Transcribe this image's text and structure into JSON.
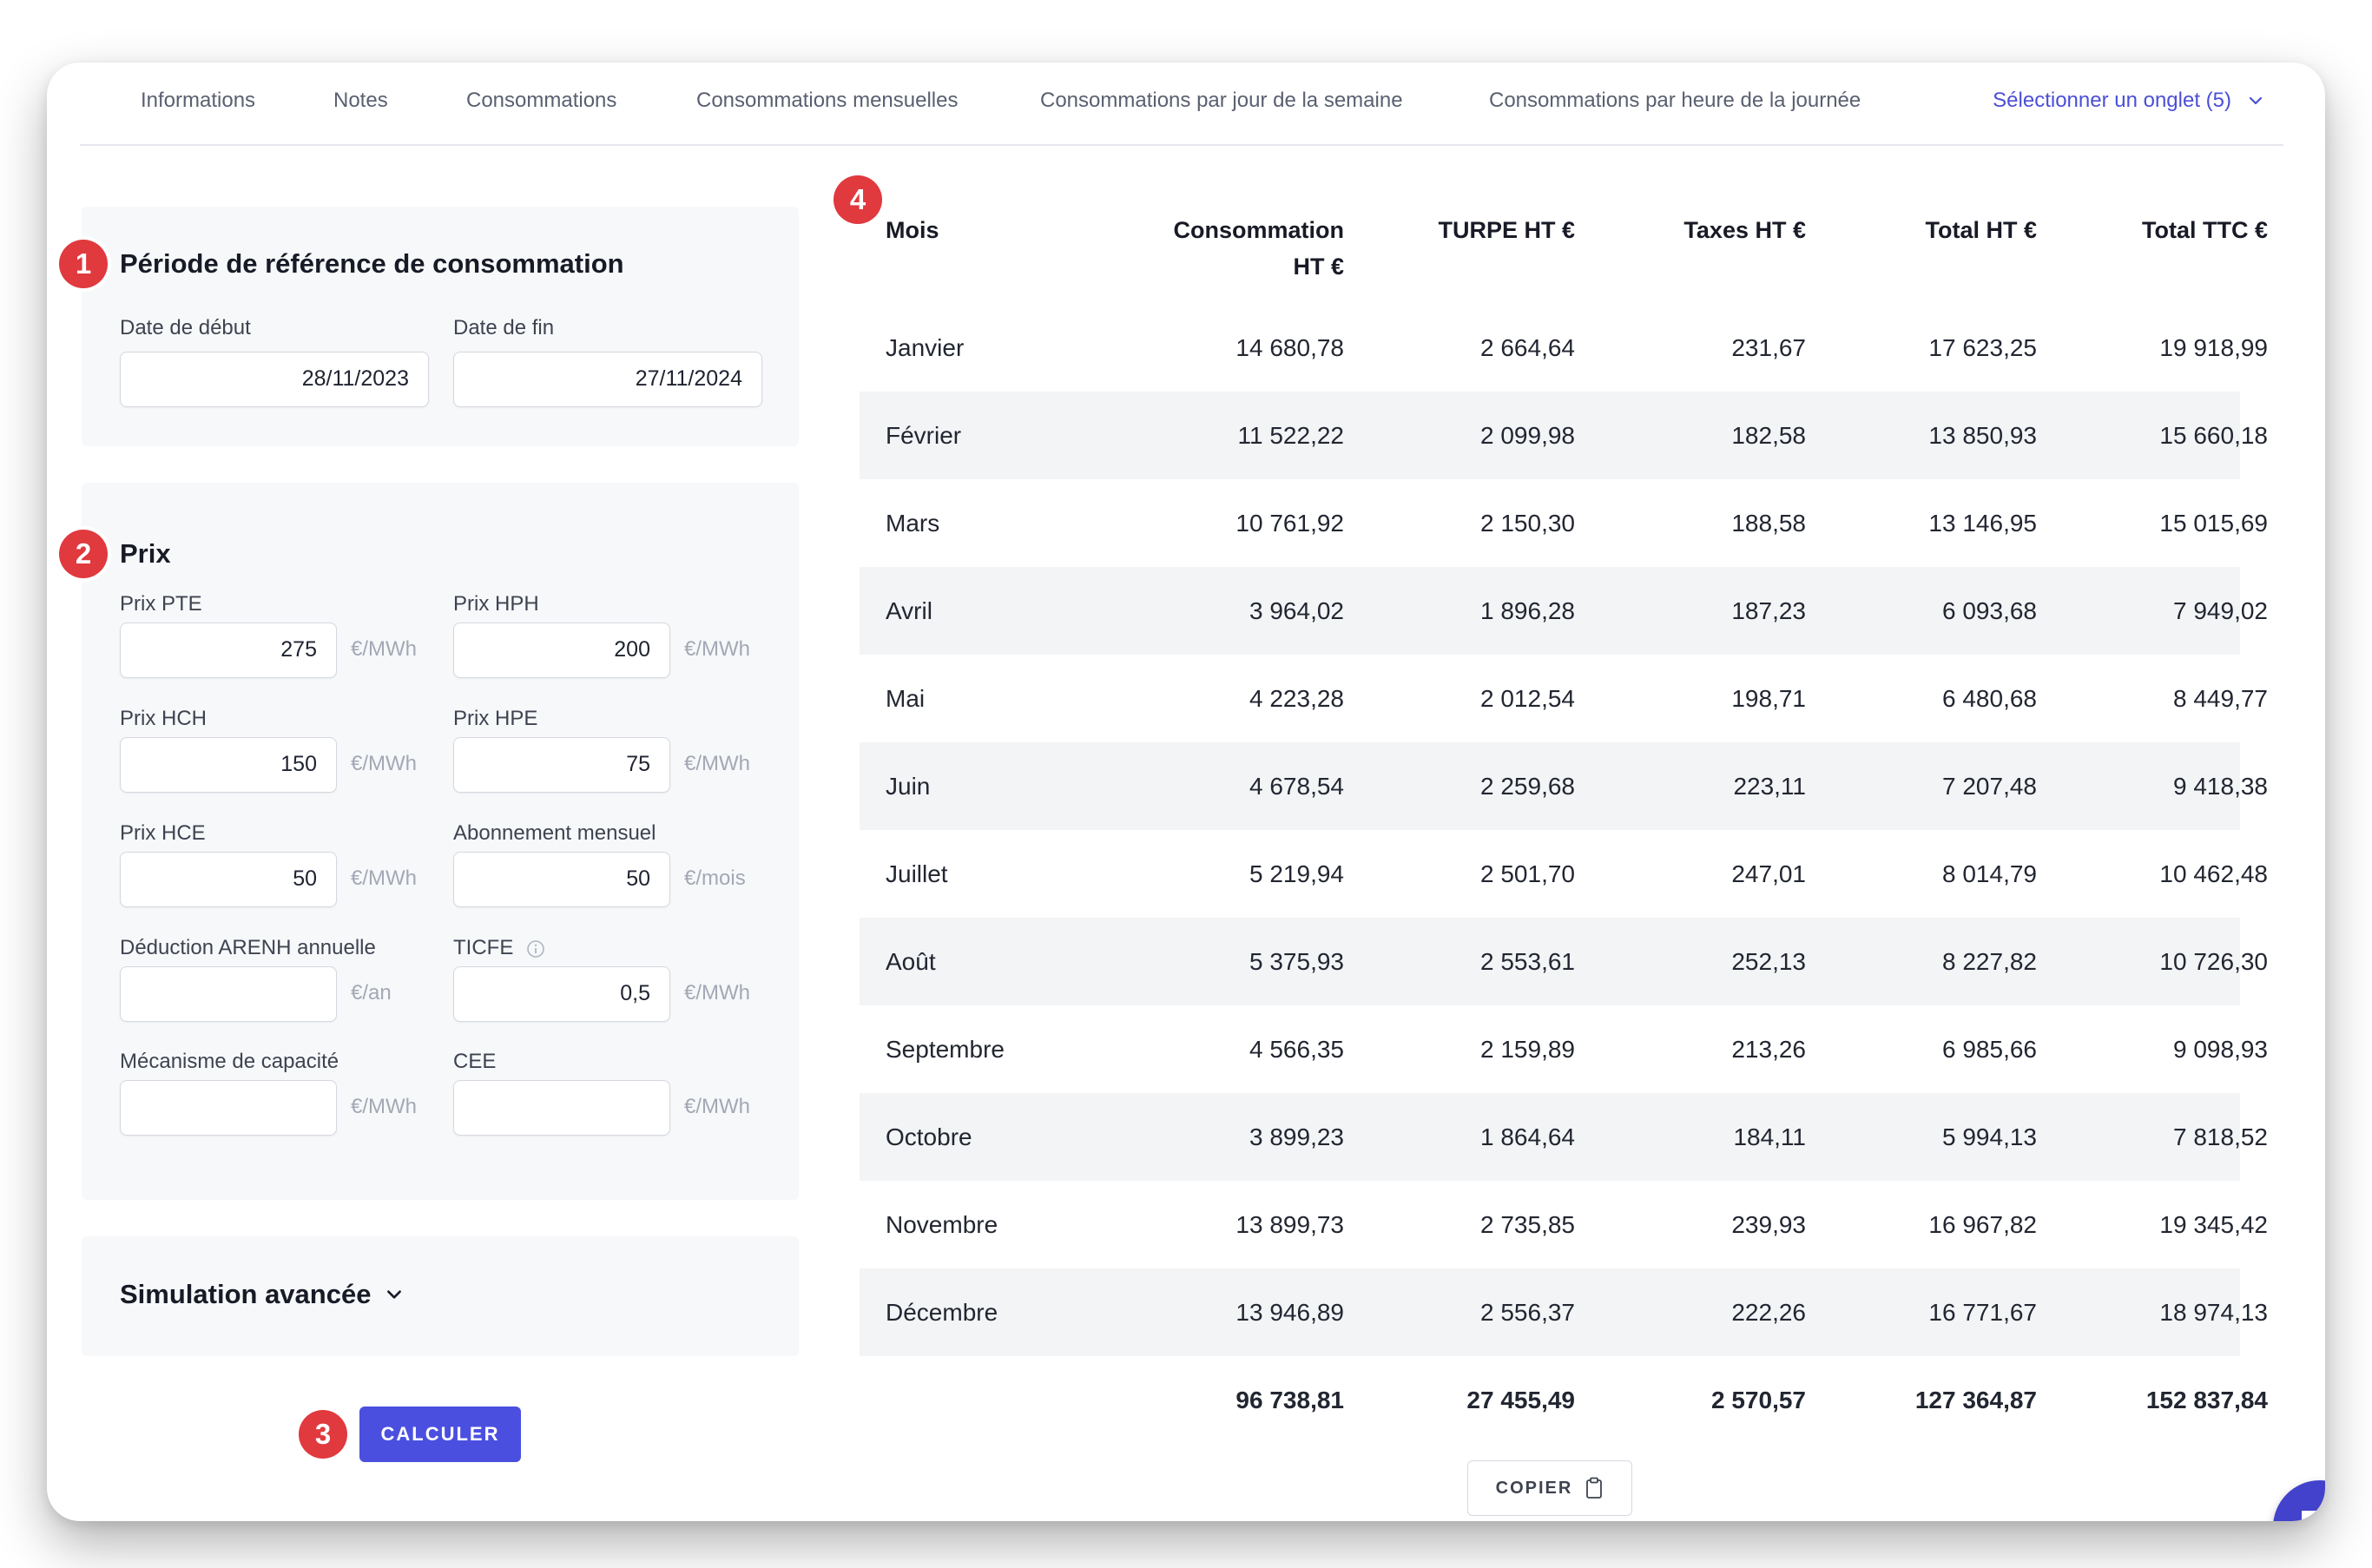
{
  "tabs": {
    "items": [
      "Informations",
      "Notes",
      "Consommations",
      "Consommations mensuelles",
      "Consommations par jour de la semaine",
      "Consommations par heure de la journée"
    ],
    "select_label": "Sélectionner un onglet (5)"
  },
  "badges": [
    "1",
    "2",
    "3",
    "4"
  ],
  "period": {
    "title": "Période de référence de consommation",
    "start_label": "Date de début",
    "start_value": "28/11/2023",
    "end_label": "Date de fin",
    "end_value": "27/11/2024"
  },
  "prices": {
    "title": "Prix",
    "fields": [
      {
        "label": "Prix PTE",
        "value": "275",
        "unit": "€/MWh"
      },
      {
        "label": "Prix HPH",
        "value": "200",
        "unit": "€/MWh"
      },
      {
        "label": "Prix HCH",
        "value": "150",
        "unit": "€/MWh"
      },
      {
        "label": "Prix HPE",
        "value": "75",
        "unit": "€/MWh"
      },
      {
        "label": "Prix HCE",
        "value": "50",
        "unit": "€/MWh"
      },
      {
        "label": "Abonnement mensuel",
        "value": "50",
        "unit": "€/mois"
      },
      {
        "label": "Déduction ARENH annuelle",
        "value": "",
        "unit": "€/an"
      },
      {
        "label": "TICFE",
        "value": "0,5",
        "unit": "€/MWh"
      },
      {
        "label": "Mécanisme de capacité",
        "value": "",
        "unit": "€/MWh"
      },
      {
        "label": "CEE",
        "value": "",
        "unit": "€/MWh"
      }
    ]
  },
  "advanced": {
    "title": "Simulation avancée"
  },
  "calc_button": "CALCULER",
  "table": {
    "headers": [
      "Mois",
      "Consommation HT €",
      "TURPE HT €",
      "Taxes HT €",
      "Total HT €",
      "Total TTC €"
    ],
    "header_lines": {
      "conso_1": "Consommation",
      "conso_2": "HT €"
    },
    "rows": [
      [
        "Janvier",
        "14 680,78",
        "2 664,64",
        "231,67",
        "17 623,25",
        "19 918,99"
      ],
      [
        "Février",
        "11 522,22",
        "2 099,98",
        "182,58",
        "13 850,93",
        "15 660,18"
      ],
      [
        "Mars",
        "10 761,92",
        "2 150,30",
        "188,58",
        "13 146,95",
        "15 015,69"
      ],
      [
        "Avril",
        "3 964,02",
        "1 896,28",
        "187,23",
        "6 093,68",
        "7 949,02"
      ],
      [
        "Mai",
        "4 223,28",
        "2 012,54",
        "198,71",
        "6 480,68",
        "8 449,77"
      ],
      [
        "Juin",
        "4 678,54",
        "2 259,68",
        "223,11",
        "7 207,48",
        "9 418,38"
      ],
      [
        "Juillet",
        "5 219,94",
        "2 501,70",
        "247,01",
        "8 014,79",
        "10 462,48"
      ],
      [
        "Août",
        "5 375,93",
        "2 553,61",
        "252,13",
        "8 227,82",
        "10 726,30"
      ],
      [
        "Septembre",
        "4 566,35",
        "2 159,89",
        "213,26",
        "6 985,66",
        "9 098,93"
      ],
      [
        "Octobre",
        "3 899,23",
        "1 864,64",
        "184,11",
        "5 994,13",
        "7 818,52"
      ],
      [
        "Novembre",
        "13 899,73",
        "2 735,85",
        "239,93",
        "16 967,82",
        "19 345,42"
      ],
      [
        "Décembre",
        "13 946,89",
        "2 556,37",
        "222,26",
        "16 771,67",
        "18 974,13"
      ]
    ],
    "totals": [
      "",
      "96 738,81",
      "27 455,49",
      "2 570,57",
      "127 364,87",
      "152 837,84"
    ]
  },
  "copy_button": "COPIER",
  "colors": {
    "accent": "#4b4fe0",
    "badge": "#e0393e",
    "chat": "#4242cc",
    "row_alt": "#f3f4f6"
  },
  "icons": [
    "chevron-down-icon",
    "info-icon",
    "clipboard-icon",
    "chat-icon"
  ]
}
